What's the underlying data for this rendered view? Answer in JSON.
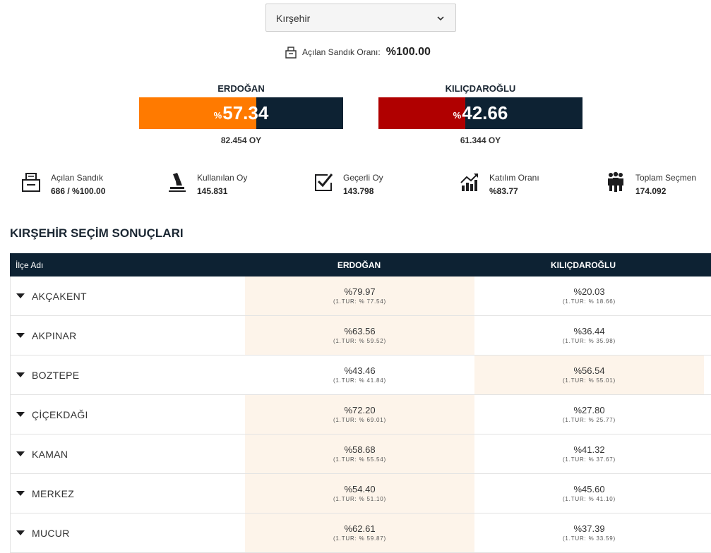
{
  "selector": {
    "value": "Kırşehir"
  },
  "opened_ratio": {
    "label": "Açılan Sandık Oranı:",
    "value": "%100.00"
  },
  "candidates": [
    {
      "name": "ERDOĞAN",
      "percent_symbol": "%",
      "percent": "57.34",
      "votes": "82.454 OY",
      "color": "#ff7a00"
    },
    {
      "name": "KILIÇDAROĞLU",
      "percent_symbol": "%",
      "percent": "42.66",
      "votes": "61.344 OY",
      "color": "#b00000"
    }
  ],
  "stats": [
    {
      "label": "Açılan Sandık",
      "value": "686 / %100.00",
      "icon": "ballot-box-icon"
    },
    {
      "label": "Kullanılan Oy",
      "value": "145.831",
      "icon": "voting-hand-icon"
    },
    {
      "label": "Geçerli Oy",
      "value": "143.798",
      "icon": "checkbox-icon"
    },
    {
      "label": "Katılım Oranı",
      "value": "%83.77",
      "icon": "growth-chart-icon"
    },
    {
      "label": "Toplam Seçmen",
      "value": "174.092",
      "icon": "people-icon"
    }
  ],
  "section_title": "KIRŞEHİR SEÇİM SONUÇLARI",
  "table": {
    "headers": [
      "İlçe Adı",
      "ERDOĞAN",
      "KILIÇDAROĞLU"
    ],
    "rows": [
      {
        "name": "AKÇAKENT",
        "a": "%79.97",
        "a_t": "(1.TUR: % 77.54)",
        "b": "%20.03",
        "b_t": "(1.TUR: % 18.66)",
        "winner": "a"
      },
      {
        "name": "AKPINAR",
        "a": "%63.56",
        "a_t": "(1.TUR: % 59.52)",
        "b": "%36.44",
        "b_t": "(1.TUR: % 35.98)",
        "winner": "a"
      },
      {
        "name": "BOZTEPE",
        "a": "%43.46",
        "a_t": "(1.TUR: % 41.84)",
        "b": "%56.54",
        "b_t": "(1.TUR: % 55.01)",
        "winner": "b"
      },
      {
        "name": "ÇİÇEKDAĞI",
        "a": "%72.20",
        "a_t": "(1.TUR: % 69.01)",
        "b": "%27.80",
        "b_t": "(1.TUR: % 25.77)",
        "winner": "a"
      },
      {
        "name": "KAMAN",
        "a": "%58.68",
        "a_t": "(1.TUR: % 55.54)",
        "b": "%41.32",
        "b_t": "(1.TUR: % 37.67)",
        "winner": "a"
      },
      {
        "name": "MERKEZ",
        "a": "%54.40",
        "a_t": "(1.TUR: % 51.10)",
        "b": "%45.60",
        "b_t": "(1.TUR: % 41.10)",
        "winner": "a"
      },
      {
        "name": "MUCUR",
        "a": "%62.61",
        "a_t": "(1.TUR: % 59.87)",
        "b": "%37.39",
        "b_t": "(1.TUR: % 33.59)",
        "winner": "a"
      }
    ]
  }
}
